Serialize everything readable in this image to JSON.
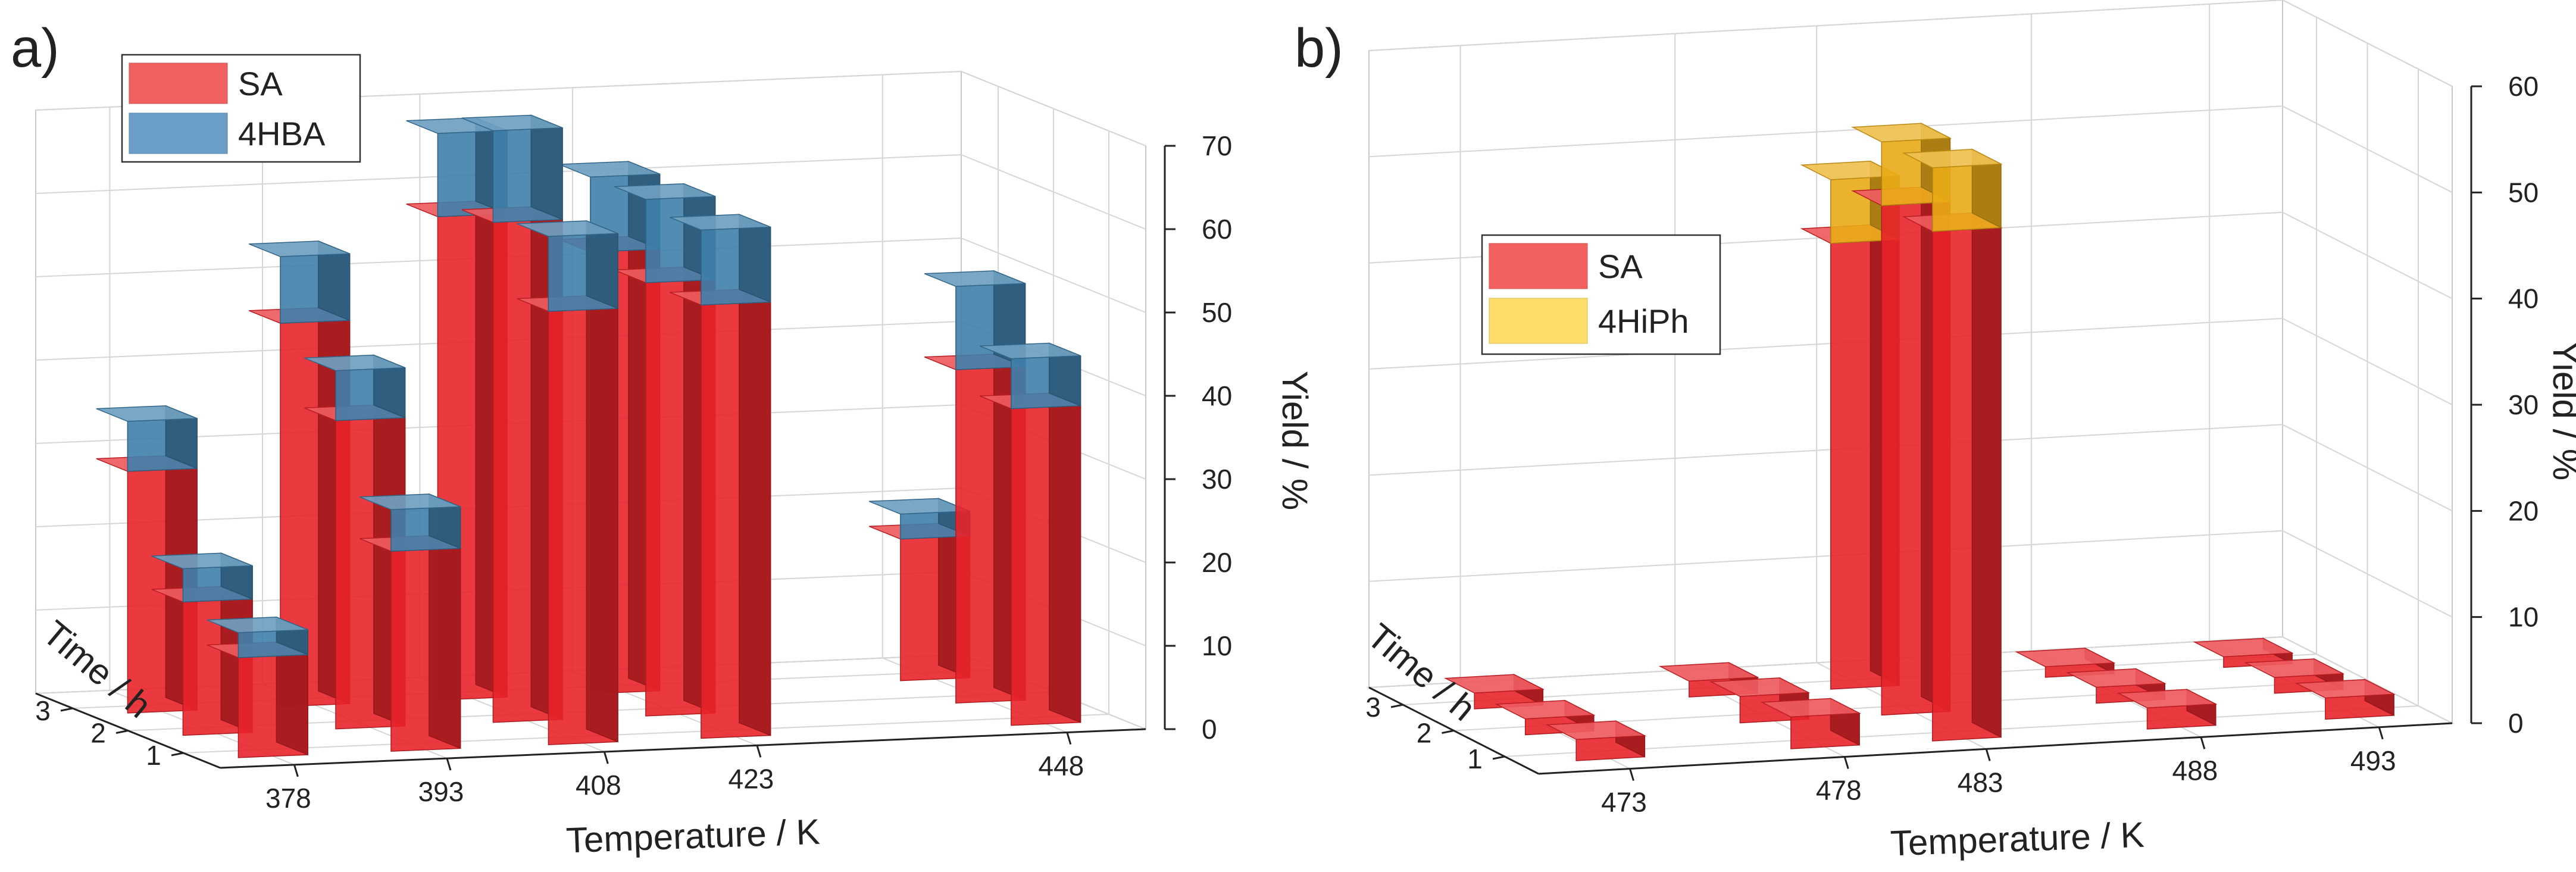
{
  "chart_data": [
    {
      "type": "bar3d",
      "panel_label": "a)",
      "xlabel": "Temperature / K",
      "ylabel": "Time / h",
      "zlabel": "Yield / %",
      "x_ticks": [
        "378",
        "393",
        "408",
        "423",
        "448"
      ],
      "y_ticks": [
        "1",
        "2",
        "3"
      ],
      "z_ticks": [
        "0",
        "10",
        "20",
        "30",
        "40",
        "50",
        "60",
        "70"
      ],
      "zlim": [
        0,
        70
      ],
      "legend": [
        {
          "name": "SA",
          "color": "#f26060"
        },
        {
          "name": "4HBA",
          "color": "#6a9ec6"
        }
      ],
      "colors": {
        "SA": "#e8242a",
        "4HBA": "#3f7fab"
      },
      "bars": [
        {
          "temperature": 378,
          "time": 3,
          "SA": 29,
          "4HBA": 6
        },
        {
          "temperature": 378,
          "time": 2,
          "SA": 16,
          "4HBA": 4
        },
        {
          "temperature": 378,
          "time": 1,
          "SA": 12,
          "4HBA": 3
        },
        {
          "temperature": 393,
          "time": 3,
          "SA": 46,
          "4HBA": 8
        },
        {
          "temperature": 393,
          "time": 2,
          "SA": 37,
          "4HBA": 6
        },
        {
          "temperature": 393,
          "time": 1,
          "SA": 24,
          "4HBA": 5
        },
        {
          "temperature": 408,
          "time": 3,
          "SA": 58,
          "4HBA": 10
        },
        {
          "temperature": 408,
          "time": 2,
          "SA": 60,
          "4HBA": 11
        },
        {
          "temperature": 408,
          "time": 1,
          "SA": 52,
          "4HBA": 9
        },
        {
          "temperature": 423,
          "time": 3,
          "SA": 53,
          "4HBA": 9
        },
        {
          "temperature": 423,
          "time": 2,
          "SA": 52,
          "4HBA": 10
        },
        {
          "temperature": 423,
          "time": 1,
          "SA": 52,
          "4HBA": 9
        },
        {
          "temperature": 448,
          "time": 3,
          "SA": 17,
          "4HBA": 3
        },
        {
          "temperature": 448,
          "time": 2,
          "SA": 40,
          "4HBA": 10
        },
        {
          "temperature": 448,
          "time": 1,
          "SA": 38,
          "4HBA": 6
        }
      ]
    },
    {
      "type": "bar3d",
      "panel_label": "b)",
      "xlabel": "Temperature / K",
      "ylabel": "Time / h",
      "zlabel": "Yield / %",
      "x_ticks": [
        "473",
        "478",
        "483",
        "488",
        "493"
      ],
      "y_ticks": [
        "1",
        "2",
        "3"
      ],
      "z_ticks": [
        "0",
        "10",
        "20",
        "30",
        "40",
        "50",
        "60"
      ],
      "zlim": [
        0,
        60
      ],
      "legend": [
        {
          "name": "SA",
          "color": "#f26060"
        },
        {
          "name": "4HiPh",
          "color": "#fddd6a"
        }
      ],
      "colors": {
        "SA": "#e8242a",
        "4HiPh": "#e9ab16"
      },
      "bars": [
        {
          "temperature": 473,
          "time": 3,
          "SA": 1.5,
          "4HiPh": 0
        },
        {
          "temperature": 473,
          "time": 2,
          "SA": 1.5,
          "4HiPh": 0
        },
        {
          "temperature": 473,
          "time": 1,
          "SA": 2,
          "4HiPh": 0
        },
        {
          "temperature": 478,
          "time": 3,
          "SA": 1.5,
          "4HiPh": 0
        },
        {
          "temperature": 478,
          "time": 2,
          "SA": 2.5,
          "4HiPh": 0
        },
        {
          "temperature": 478,
          "time": 1,
          "SA": 3,
          "4HiPh": 0
        },
        {
          "temperature": 483,
          "time": 3,
          "SA": 42,
          "4HiPh": 6
        },
        {
          "temperature": 483,
          "time": 2,
          "SA": 48,
          "4HiPh": 6
        },
        {
          "temperature": 483,
          "time": 1,
          "SA": 48,
          "4HiPh": 6
        },
        {
          "temperature": 488,
          "time": 3,
          "SA": 1,
          "4HiPh": 0
        },
        {
          "temperature": 488,
          "time": 2,
          "SA": 1.5,
          "4HiPh": 0
        },
        {
          "temperature": 488,
          "time": 1,
          "SA": 2,
          "4HiPh": 0
        },
        {
          "temperature": 493,
          "time": 3,
          "SA": 1,
          "4HiPh": 0
        },
        {
          "temperature": 493,
          "time": 2,
          "SA": 1.5,
          "4HiPh": 0
        },
        {
          "temperature": 493,
          "time": 1,
          "SA": 2,
          "4HiPh": 0
        }
      ]
    }
  ]
}
